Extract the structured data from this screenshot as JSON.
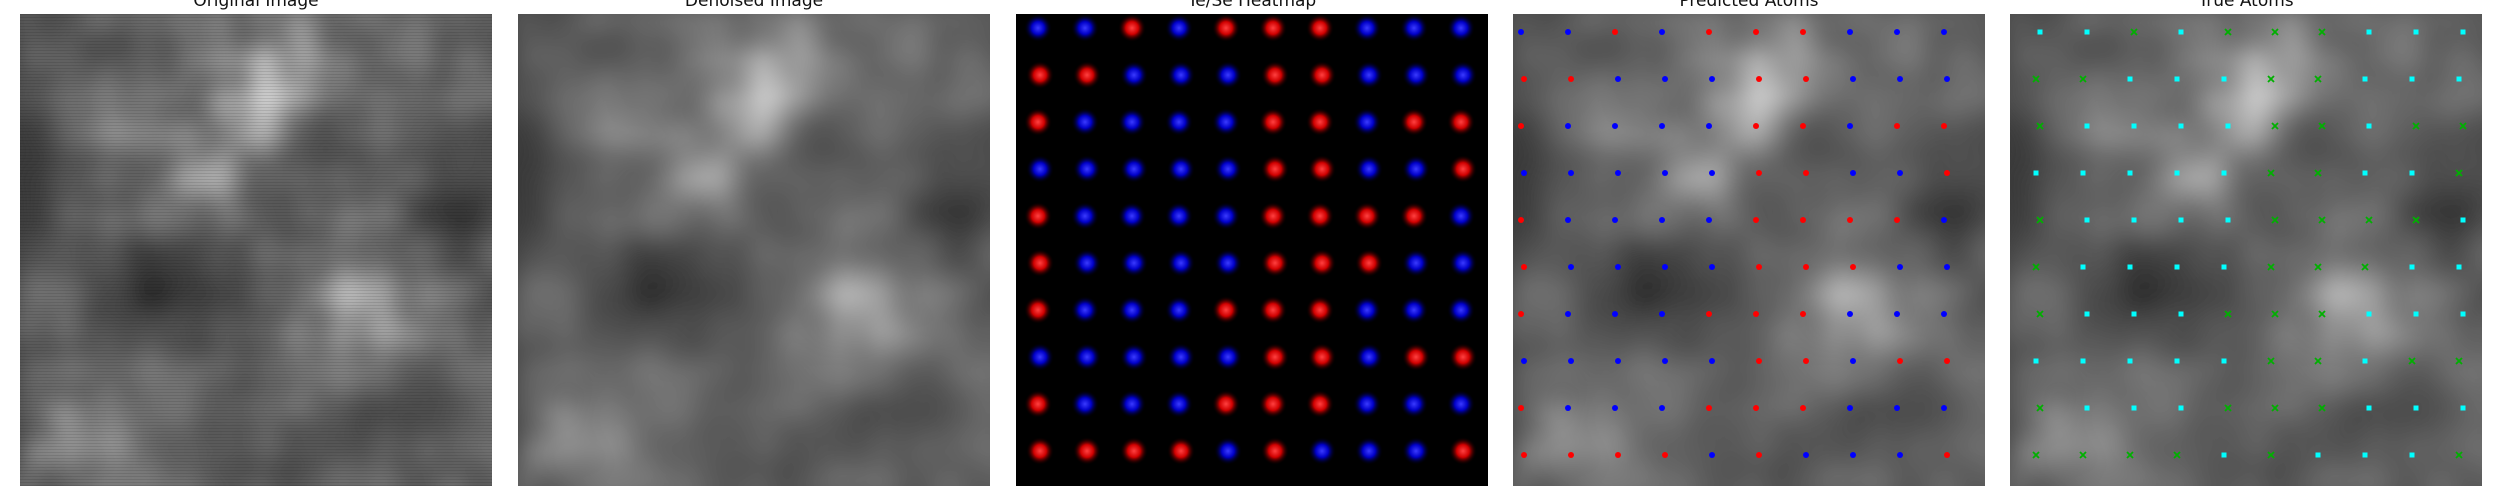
{
  "panels": [
    {
      "title": "Original Image"
    },
    {
      "title": "Denoised Image"
    },
    {
      "title": "Te/Se Heatmap"
    },
    {
      "title": "Predicted Atoms"
    },
    {
      "title": "True Atoms"
    }
  ],
  "colors": {
    "te": "#ff2020",
    "se": "#1a1aff",
    "predicted_te": "#ff0000",
    "predicted_se": "#0000ff",
    "true_marker_a": "#00ffff",
    "true_marker_b": "#00b000"
  }
}
